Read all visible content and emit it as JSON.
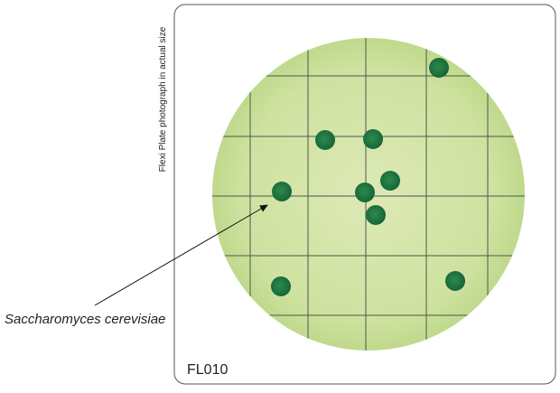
{
  "side_caption": "Flexi Plate photograph in actual size",
  "organism_label": "Saccharomyces cerevisiae",
  "plate_code": "FL010"
}
